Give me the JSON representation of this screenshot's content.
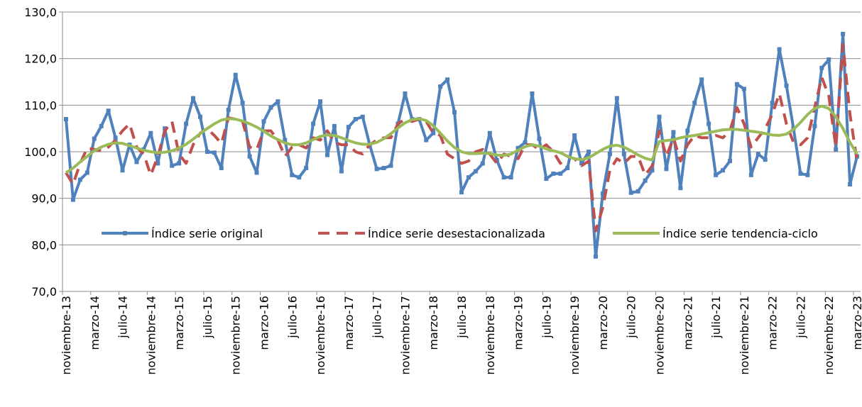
{
  "chart_data": {
    "type": "line",
    "categories": [
      "noviembre-13",
      null,
      null,
      null,
      "marzo-14",
      null,
      null,
      null,
      "julio-14",
      null,
      null,
      null,
      "noviembre-14",
      null,
      null,
      null,
      "marzo-15",
      null,
      null,
      null,
      "julio-15",
      null,
      null,
      null,
      "noviembre-15",
      null,
      null,
      null,
      "marzo-16",
      null,
      null,
      null,
      "julio-16",
      null,
      null,
      null,
      "noviembre-16",
      null,
      null,
      null,
      "marzo-17",
      null,
      null,
      null,
      "julio-17",
      null,
      null,
      null,
      "noviembre-17",
      null,
      null,
      null,
      "marzo-18",
      null,
      null,
      null,
      "julio-18",
      null,
      null,
      null,
      "noviembre-18",
      null,
      null,
      null,
      "marzo-19",
      null,
      null,
      null,
      "julio-19",
      null,
      null,
      null,
      "noviembre-19",
      null,
      null,
      null,
      "marzo-20",
      null,
      null,
      null,
      "julio-20",
      null,
      null,
      null,
      "noviembre-20",
      null,
      null,
      null,
      "marzo-21",
      null,
      null,
      null,
      "julio-21",
      null,
      null,
      null,
      "noviembre-21",
      null,
      null,
      null,
      "marzo-22",
      null,
      null,
      null,
      "julio-22",
      null,
      null,
      null,
      "noviembre-22",
      null,
      null,
      null,
      "marzo-23"
    ],
    "series": [
      {
        "name": "Índice serie original",
        "color": "#4f81bd",
        "style": "marker",
        "values": [
          107.0,
          89.7,
          94.0,
          95.5,
          102.8,
          105.5,
          108.8,
          103.0,
          96.0,
          101.5,
          97.8,
          100.5,
          104.0,
          97.5,
          105.0,
          97.0,
          97.5,
          106.0,
          111.5,
          107.5,
          100.0,
          99.8,
          96.5,
          109.0,
          116.5,
          110.5,
          99.0,
          95.5,
          106.5,
          109.5,
          110.8,
          102.5,
          95.0,
          94.5,
          96.5,
          106.0,
          110.8,
          99.3,
          105.5,
          95.8,
          105.3,
          107.0,
          107.5,
          101.5,
          96.3,
          96.5,
          97.0,
          106.0,
          112.5,
          107.0,
          107.0,
          102.5,
          104.0,
          114.0,
          115.5,
          108.5,
          91.3,
          94.5,
          95.8,
          97.5,
          104.0,
          98.2,
          94.5,
          94.5,
          100.8,
          102.0,
          112.5,
          102.8,
          94.2,
          95.3,
          95.3,
          96.5,
          103.5,
          97.5,
          100.0,
          77.5,
          91.0,
          99.5,
          111.5,
          99.5,
          91.2,
          91.5,
          93.8,
          96.0,
          107.5,
          96.3,
          104.2,
          92.2,
          104.5,
          110.5,
          115.5,
          106.0,
          95.0,
          96.0,
          98.0,
          114.5,
          113.5,
          95.0,
          99.5,
          98.3,
          110.5,
          122.0,
          114.2,
          105.0,
          95.3,
          95.0,
          105.5,
          118.0,
          119.8,
          100.5,
          125.3,
          93.0,
          99.0
        ]
      },
      {
        "name": "Índice serie desestacionalizada",
        "color": "#c0504d",
        "style": "dashed",
        "values": [
          95.5,
          93.0,
          97.5,
          100.8,
          100.5,
          100.2,
          101.0,
          102.5,
          104.5,
          106.0,
          101.0,
          99.5,
          95.0,
          99.0,
          104.5,
          106.5,
          99.5,
          97.5,
          101.5,
          104.0,
          105.0,
          103.5,
          101.8,
          107.3,
          107.0,
          106.5,
          101.0,
          100.5,
          104.5,
          104.5,
          102.5,
          99.0,
          101.0,
          101.5,
          100.8,
          103.0,
          102.5,
          104.5,
          102.0,
          101.5,
          101.5,
          100.0,
          99.5,
          101.5,
          102.5,
          103.0,
          103.0,
          106.0,
          107.0,
          106.5,
          107.0,
          106.5,
          104.0,
          103.5,
          99.5,
          98.5,
          97.5,
          98.0,
          100.0,
          100.5,
          99.5,
          97.5,
          99.5,
          99.0,
          98.5,
          101.5,
          101.5,
          100.5,
          101.5,
          100.0,
          97.5,
          99.0,
          98.5,
          97.0,
          98.0,
          83.0,
          88.0,
          96.0,
          98.5,
          97.5,
          99.0,
          99.0,
          95.0,
          97.0,
          104.5,
          99.0,
          103.0,
          98.0,
          101.5,
          103.5,
          103.0,
          103.0,
          103.5,
          103.0,
          104.5,
          109.5,
          106.0,
          101.0,
          103.0,
          105.0,
          108.0,
          112.5,
          106.0,
          102.0,
          101.5,
          103.0,
          109.5,
          116.0,
          112.0,
          101.0,
          123.0,
          108.0,
          98.0
        ]
      },
      {
        "name": "Índice serie tendencia-ciclo",
        "color": "#9bbb59",
        "style": "solid",
        "values": [
          95.5,
          96.5,
          97.8,
          99.0,
          100.2,
          101.0,
          101.6,
          101.9,
          101.8,
          101.3,
          100.8,
          100.3,
          100.0,
          99.8,
          99.9,
          100.2,
          100.8,
          101.6,
          102.7,
          103.9,
          105.0,
          106.0,
          106.8,
          107.1,
          107.0,
          106.6,
          106.0,
          105.3,
          104.4,
          103.4,
          102.6,
          101.9,
          101.5,
          101.5,
          101.9,
          102.6,
          103.3,
          103.6,
          103.5,
          103.0,
          102.4,
          101.9,
          101.6,
          101.6,
          102.0,
          102.8,
          103.9,
          105.1,
          106.2,
          106.9,
          107.1,
          106.7,
          105.6,
          104.0,
          102.3,
          100.9,
          100.0,
          99.6,
          99.6,
          99.7,
          99.6,
          99.3,
          99.2,
          99.5,
          100.3,
          101.1,
          101.5,
          101.2,
          100.6,
          100.2,
          99.8,
          99.0,
          98.5,
          98.3,
          98.7,
          99.6,
          100.5,
          101.2,
          101.4,
          101.0,
          100.2,
          99.3,
          98.6,
          98.2,
          102.2,
          102.4,
          102.6,
          103.0,
          103.3,
          103.5,
          103.8,
          104.1,
          104.4,
          104.7,
          104.8,
          104.8,
          104.6,
          104.4,
          104.2,
          103.9,
          103.6,
          103.5,
          103.8,
          104.8,
          106.3,
          108.0,
          109.3,
          109.8,
          109.3,
          107.5,
          105.0,
          102.0,
          99.5
        ]
      }
    ],
    "ylim": [
      70,
      130
    ],
    "yticks": [
      {
        "value": 70,
        "label": "70,0"
      },
      {
        "value": 80,
        "label": "80,0"
      },
      {
        "value": 90,
        "label": "90,0"
      },
      {
        "value": 100,
        "label": "100,0"
      },
      {
        "value": 110,
        "label": "110,0"
      },
      {
        "value": 120,
        "label": "120,0"
      },
      {
        "value": 130,
        "label": "130,0"
      }
    ],
    "grid": true,
    "legend": "inside-bottom"
  }
}
